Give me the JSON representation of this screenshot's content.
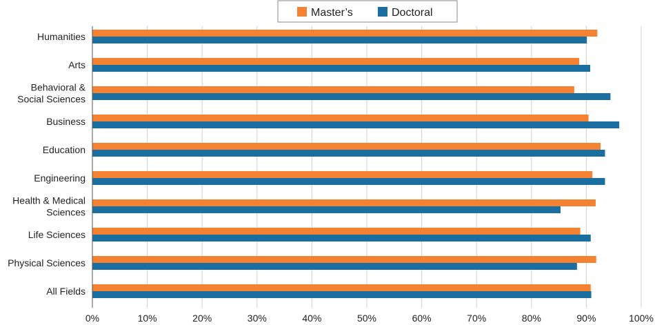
{
  "chart_data": {
    "type": "bar",
    "orientation": "horizontal",
    "categories": [
      [
        "Humanities"
      ],
      [
        "Arts"
      ],
      [
        "Behavioral &",
        "Social Sciences"
      ],
      [
        "Business"
      ],
      [
        "Education"
      ],
      [
        "Engineering"
      ],
      [
        "Health & Medical",
        "Sciences"
      ],
      [
        "Life Sciences"
      ],
      [
        "Physical Sciences"
      ],
      [
        "All Fields"
      ]
    ],
    "series": [
      {
        "name": "Master’s",
        "color": "#F58233",
        "values": [
          92,
          88.7,
          87.8,
          90.4,
          92.6,
          91.1,
          91.7,
          88.9,
          91.8,
          90.8
        ]
      },
      {
        "name": "Doctoral",
        "color": "#1B6FA0",
        "values": [
          90.1,
          90.7,
          94.4,
          96,
          93.4,
          93.4,
          85.3,
          90.8,
          88.3,
          90.9
        ]
      }
    ],
    "xlim": [
      0,
      100
    ],
    "xticks": [
      0,
      10,
      20,
      30,
      40,
      50,
      60,
      70,
      80,
      90,
      100
    ],
    "tick_suffix": "%",
    "grid": true,
    "legend_position": "top"
  }
}
